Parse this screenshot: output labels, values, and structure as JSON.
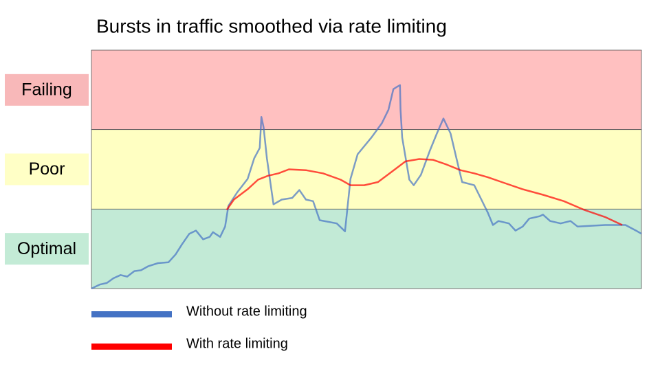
{
  "chart_data": {
    "type": "line",
    "title": "Bursts in traffic smoothed via rate limiting",
    "xlim": [
      0,
      100
    ],
    "ylim": [
      0,
      300
    ],
    "bands": [
      {
        "label": "Failing",
        "range": [
          200,
          300
        ],
        "color": "#ffc0c0",
        "label_color": "#f8b8b9"
      },
      {
        "label": "Poor",
        "range": [
          100,
          200
        ],
        "color": "#ffffc2",
        "label_color": "#ffffc6"
      },
      {
        "label": "Optimal",
        "range": [
          0,
          100
        ],
        "color": "#c2ead6",
        "label_color": "#c3ebd6"
      }
    ],
    "series": [
      {
        "name": "Without rate limiting",
        "color": "#4472c4",
        "x": [
          0,
          1.5,
          2.8,
          4,
          5.3,
          6.5,
          7.8,
          9,
          10.3,
          12.1,
          14,
          15.3,
          16.5,
          17.8,
          19,
          20.3,
          21.5,
          22.1,
          23.4,
          24.3,
          24.9,
          26.5,
          28.4,
          29.6,
          30.6,
          30.9,
          31.3,
          31.9,
          33.1,
          34.6,
          36.5,
          37.8,
          39,
          40.3,
          41.5,
          44.6,
          46.1,
          47.1,
          48.4,
          50.9,
          52.8,
          54,
          54.9,
          55.6,
          56.1,
          56.2,
          56.5,
          57.8,
          58.6,
          59.9,
          61.5,
          62.8,
          64,
          65.3,
          66.5,
          67.4,
          69.6,
          70.9,
          72.1,
          73,
          74,
          75.9,
          77.1,
          78.4,
          79.6,
          81.5,
          82.1,
          83.4,
          85.3,
          87.1,
          88.4,
          93.4,
          97.1,
          99,
          100
        ],
        "values": [
          0,
          5,
          7,
          13,
          17,
          15,
          22,
          23,
          28,
          32,
          33,
          43,
          56,
          69,
          73,
          62,
          65,
          71,
          65,
          78,
          104,
          121,
          138,
          164,
          177,
          216,
          203,
          164,
          106,
          112,
          114,
          124,
          112,
          110,
          86,
          82,
          72,
          138,
          169,
          190,
          208,
          225,
          251,
          254,
          256,
          225,
          190,
          137,
          130,
          143,
          173,
          195,
          214,
          195,
          160,
          134,
          130,
          112,
          95,
          80,
          85,
          82,
          73,
          78,
          88,
          91,
          93,
          85,
          82,
          85,
          78,
          80,
          80,
          73,
          69
        ]
      },
      {
        "name": "With rate limiting",
        "color": "#ff0000",
        "x": [
          24.6,
          25.9,
          28.4,
          30.3,
          32.1,
          34,
          35.9,
          39,
          42.1,
          45.3,
          47.1,
          49.6,
          52.1,
          54.6,
          57.1,
          59.6,
          62.1,
          64.6,
          67.1,
          69.6,
          72.1,
          74.6,
          78.4,
          82.1,
          85.9,
          89.6,
          93.4,
          96.5
        ],
        "values": [
          99,
          112,
          125,
          137,
          142,
          145,
          150,
          149,
          145,
          137,
          130,
          130,
          134,
          147,
          160,
          163,
          162,
          156,
          149,
          145,
          140,
          134,
          125,
          118,
          110,
          99,
          90,
          80
        ]
      }
    ]
  }
}
